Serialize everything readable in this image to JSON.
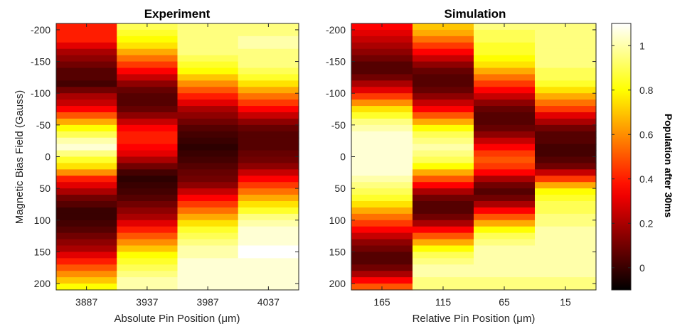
{
  "chart_data": [
    {
      "type": "heatmap",
      "title": "Experiment",
      "xlabel": "Absolute Pin Position (μm)",
      "ylabel": "Magnetic Bias Field (Gauss)",
      "x_tick_labels": [
        "3887",
        "3937",
        "3987",
        "4037"
      ],
      "y_tick_labels": [
        "-200",
        "-150",
        "-100",
        "-50",
        "0",
        "50",
        "100",
        "150",
        "200"
      ],
      "y_ticks": [
        -200,
        -150,
        -100,
        -50,
        0,
        50,
        100,
        150,
        200
      ],
      "ylim": [
        -210,
        210
      ],
      "y_direction": "reverse",
      "rows": 42,
      "columns": [
        {
          "x": "3887",
          "values": [
            0.4,
            0.4,
            0.4,
            0.3,
            0.2,
            0.15,
            0.1,
            0.05,
            0.05,
            0.02,
            0.1,
            0.2,
            0.25,
            0.35,
            0.5,
            0.65,
            0.8,
            0.9,
            1.0,
            1.05,
            0.95,
            0.85,
            0.75,
            0.6,
            0.4,
            0.3,
            0.2,
            0.1,
            0.05,
            0.0,
            0.0,
            0.02,
            0.05,
            0.1,
            0.15,
            0.2,
            0.3,
            0.4,
            0.5,
            0.6,
            0.7,
            0.8
          ]
        },
        {
          "x": "3937",
          "values": [
            0.9,
            0.85,
            0.8,
            0.75,
            0.65,
            0.55,
            0.45,
            0.35,
            0.25,
            0.15,
            0.08,
            0.05,
            0.05,
            0.08,
            0.15,
            0.25,
            0.35,
            0.4,
            0.4,
            0.35,
            0.3,
            0.2,
            0.1,
            0.02,
            -0.02,
            0.0,
            0.02,
            0.05,
            0.1,
            0.15,
            0.2,
            0.3,
            0.4,
            0.5,
            0.6,
            0.7,
            0.8,
            0.85,
            0.9,
            0.95,
            1.0,
            1.0
          ]
        },
        {
          "x": "3987",
          "values": [
            0.95,
            0.95,
            0.95,
            0.95,
            0.95,
            0.9,
            0.85,
            0.8,
            0.7,
            0.6,
            0.5,
            0.4,
            0.3,
            0.2,
            0.15,
            0.1,
            0.05,
            0.02,
            0.0,
            -0.02,
            0.0,
            0.02,
            0.05,
            0.08,
            0.1,
            0.15,
            0.25,
            0.35,
            0.45,
            0.55,
            0.65,
            0.75,
            0.85,
            0.9,
            0.95,
            1.0,
            1.0,
            1.05,
            1.05,
            1.05,
            1.05,
            1.05
          ]
        },
        {
          "x": "4037",
          "values": [
            0.95,
            0.95,
            1.0,
            1.0,
            0.95,
            0.95,
            0.95,
            0.9,
            0.85,
            0.75,
            0.65,
            0.55,
            0.45,
            0.35,
            0.25,
            0.15,
            0.08,
            0.05,
            0.05,
            0.05,
            0.08,
            0.1,
            0.15,
            0.25,
            0.35,
            0.45,
            0.55,
            0.65,
            0.75,
            0.85,
            0.95,
            1.0,
            1.05,
            1.05,
            1.05,
            1.1,
            1.1,
            1.05,
            1.05,
            1.05,
            1.05,
            1.05
          ]
        }
      ]
    },
    {
      "type": "heatmap",
      "title": "Simulation",
      "xlabel": "Relative Pin Position (μm)",
      "x_tick_labels": [
        "165",
        "115",
        "65",
        "15"
      ],
      "y_tick_labels": [
        "-200",
        "-150",
        "-100",
        "-50",
        "0",
        "50",
        "100",
        "150",
        "200"
      ],
      "y_ticks": [
        -200,
        -150,
        -100,
        -50,
        0,
        50,
        100,
        150,
        200
      ],
      "ylim": [
        -210,
        210
      ],
      "y_direction": "reverse",
      "rows": 42,
      "columns": [
        {
          "x": "165",
          "values": [
            0.35,
            0.3,
            0.25,
            0.2,
            0.15,
            0.1,
            0.05,
            0.05,
            0.1,
            0.2,
            0.3,
            0.45,
            0.6,
            0.75,
            0.85,
            0.95,
            1.0,
            1.05,
            1.05,
            1.05,
            1.05,
            1.05,
            1.05,
            1.05,
            1.0,
            0.95,
            0.9,
            0.85,
            0.75,
            0.65,
            0.55,
            0.45,
            0.35,
            0.25,
            0.15,
            0.1,
            0.05,
            0.05,
            0.1,
            0.2,
            0.35,
            0.5
          ]
        },
        {
          "x": "115",
          "values": [
            0.7,
            0.65,
            0.55,
            0.45,
            0.35,
            0.25,
            0.15,
            0.08,
            0.05,
            0.05,
            0.08,
            0.15,
            0.25,
            0.35,
            0.5,
            0.65,
            0.8,
            0.9,
            0.95,
            1.0,
            0.95,
            0.9,
            0.8,
            0.65,
            0.5,
            0.35,
            0.2,
            0.1,
            0.05,
            0.05,
            0.1,
            0.2,
            0.35,
            0.5,
            0.65,
            0.8,
            0.9,
            0.95,
            1.0,
            1.0,
            0.95,
            0.95
          ]
        },
        {
          "x": "65",
          "values": [
            0.95,
            0.9,
            0.9,
            0.85,
            0.85,
            0.8,
            0.75,
            0.65,
            0.55,
            0.45,
            0.35,
            0.25,
            0.15,
            0.08,
            0.05,
            0.05,
            0.08,
            0.15,
            0.25,
            0.35,
            0.45,
            0.5,
            0.45,
            0.35,
            0.2,
            0.1,
            0.05,
            0.1,
            0.2,
            0.35,
            0.5,
            0.65,
            0.8,
            0.9,
            0.95,
            1.0,
            1.0,
            1.0,
            1.0,
            1.0,
            0.95,
            0.95
          ]
        },
        {
          "x": "15",
          "values": [
            0.95,
            0.95,
            0.95,
            0.95,
            0.95,
            0.95,
            0.95,
            0.9,
            0.9,
            0.85,
            0.75,
            0.65,
            0.55,
            0.45,
            0.3,
            0.2,
            0.1,
            0.05,
            0.05,
            0.02,
            0.02,
            0.05,
            0.1,
            0.25,
            0.45,
            0.65,
            0.8,
            0.85,
            0.9,
            0.9,
            0.95,
            0.95,
            1.0,
            1.0,
            1.0,
            1.0,
            1.0,
            1.0,
            1.0,
            1.0,
            0.95,
            0.95
          ]
        }
      ]
    }
  ],
  "colorbar": {
    "label": "Population after 30ms",
    "ticks": [
      0,
      0.2,
      0.4,
      0.6,
      0.8,
      1
    ],
    "tick_labels": [
      "0",
      "0.2",
      "0.4",
      "0.6",
      "0.8",
      "1"
    ],
    "range": [
      -0.1,
      1.1
    ],
    "colormap": "hot"
  }
}
